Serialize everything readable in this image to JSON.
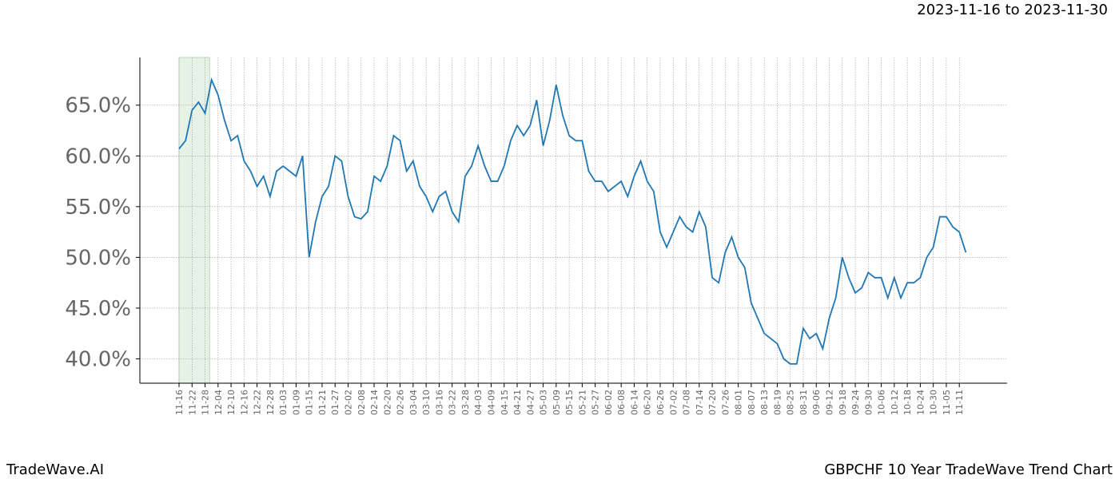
{
  "chart_data": {
    "type": "line",
    "subtitle": "2023-11-16 to 2023-11-30",
    "brand": "TradeWave.AI",
    "title": "GBPCHF 10 Year TradeWave Trend Chart",
    "color": "#1f77b4",
    "highlight_color": "#e6f2e6",
    "highlight_range": [
      0,
      4.7
    ],
    "grid": true,
    "categories": [
      "11-16",
      null,
      "11-22",
      null,
      "11-28",
      null,
      "12-04",
      null,
      "12-10",
      null,
      "12-16",
      null,
      "12-22",
      null,
      "12-28",
      null,
      "01-03",
      null,
      "01-09",
      null,
      "01-15",
      null,
      "01-21",
      null,
      "01-27",
      null,
      "02-02",
      null,
      "02-08",
      null,
      "02-14",
      null,
      "02-20",
      null,
      "02-26",
      null,
      "03-04",
      null,
      "03-10",
      null,
      "03-16",
      null,
      "03-22",
      null,
      "03-28",
      null,
      "04-03",
      null,
      "04-09",
      null,
      "04-15",
      null,
      "04-21",
      null,
      "04-27",
      null,
      "05-03",
      null,
      "05-09",
      null,
      "05-15",
      null,
      "05-21",
      null,
      "05-27",
      null,
      "06-02",
      null,
      "06-08",
      null,
      "06-14",
      null,
      "06-20",
      null,
      "06-26",
      null,
      "07-02",
      null,
      "07-08",
      null,
      "07-14",
      null,
      "07-20",
      null,
      "07-26",
      null,
      "08-01",
      null,
      "08-07",
      null,
      "08-13",
      null,
      "08-19",
      null,
      "08-25",
      null,
      "08-31",
      null,
      "09-06",
      null,
      "09-12",
      null,
      "09-18",
      null,
      "09-24",
      null,
      "09-30",
      null,
      "10-06",
      null,
      "10-12",
      null,
      "10-18",
      null,
      "10-24",
      null,
      "10-30",
      null,
      "11-05",
      null,
      "11-11",
      null
    ],
    "values": [
      60.7,
      61.5,
      64.5,
      65.3,
      64.2,
      67.5,
      66.0,
      63.5,
      61.5,
      62.0,
      59.5,
      58.5,
      57.0,
      58.0,
      56.0,
      58.5,
      59.0,
      58.5,
      58.0,
      60.0,
      50.0,
      53.5,
      56.0,
      57.0,
      60.0,
      59.5,
      56.0,
      54.0,
      53.8,
      54.5,
      58.0,
      57.5,
      59.0,
      62.0,
      61.5,
      58.5,
      59.5,
      57.0,
      56.0,
      54.5,
      56.0,
      56.5,
      54.5,
      53.5,
      58.0,
      59.0,
      61.0,
      59.0,
      57.5,
      57.5,
      59.0,
      61.5,
      63.0,
      62.0,
      63.0,
      65.5,
      61.0,
      63.5,
      67.0,
      64.0,
      62.0,
      61.5,
      61.5,
      58.5,
      57.5,
      57.5,
      56.5,
      57.0,
      57.5,
      56.0,
      58.0,
      59.5,
      57.5,
      56.5,
      52.5,
      51.0,
      52.5,
      54.0,
      53.0,
      52.5,
      54.5,
      53.0,
      48.0,
      47.5,
      50.5,
      52.0,
      50.0,
      49.0,
      45.5,
      44.0,
      42.5,
      42.0,
      41.5,
      40.0,
      39.5,
      39.5,
      43.0,
      42.0,
      42.5,
      41.0,
      44.0,
      46.0,
      50.0,
      48.0,
      46.5,
      47.0,
      48.5,
      48.0,
      48.0,
      46.0,
      48.0,
      46.0,
      47.5,
      47.5,
      48.0,
      50.0,
      51.0,
      54.0,
      54.0,
      53.0,
      52.5,
      50.5
    ],
    "ylim": [
      37.6,
      69.7
    ],
    "yticks": [
      {
        "value": 40,
        "label": "40.0%"
      },
      {
        "value": 45,
        "label": "45.0%"
      },
      {
        "value": 50,
        "label": "50.0%"
      },
      {
        "value": 55,
        "label": "55.0%"
      },
      {
        "value": 60,
        "label": "60.0%"
      },
      {
        "value": 65,
        "label": "65.0%"
      }
    ]
  }
}
